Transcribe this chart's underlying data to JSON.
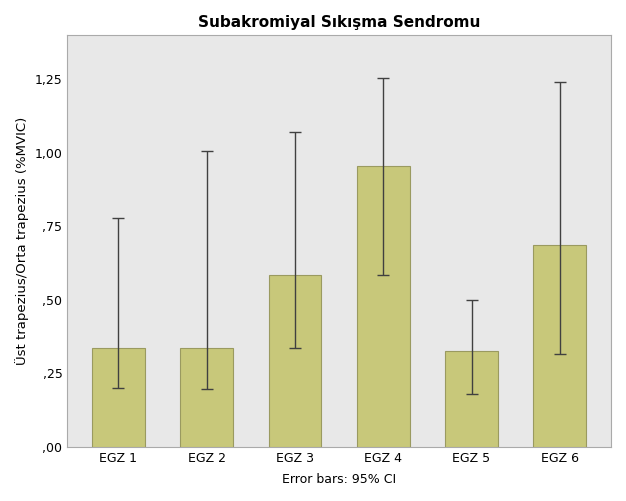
{
  "title": "Subakromiyal Sıkışma Sendromu",
  "ylabel": "Üst trapezius/Orta trapezius (%MVIC)",
  "xlabel": "Error bars: 95% CI",
  "categories": [
    "EGZ 1",
    "EGZ 2",
    "EGZ 3",
    "EGZ 4",
    "EGZ 5",
    "EGZ 6"
  ],
  "values": [
    0.335,
    0.335,
    0.585,
    0.955,
    0.325,
    0.685
  ],
  "errors_lower": [
    0.135,
    0.14,
    0.25,
    0.37,
    0.145,
    0.37
  ],
  "errors_upper": [
    0.445,
    0.67,
    0.485,
    0.3,
    0.175,
    0.555
  ],
  "bar_color": "#c8c87a",
  "bar_edgecolor": "#9a9a60",
  "figure_facecolor": "#ffffff",
  "axes_facecolor": "#e8e8e8",
  "ylim": [
    0,
    1.4
  ],
  "yticks": [
    0.0,
    0.25,
    0.5,
    0.75,
    1.0,
    1.25
  ],
  "ytick_labels": [
    ",00",
    ",25",
    ",50",
    ",75",
    "1,00",
    "1,25"
  ],
  "title_fontsize": 11,
  "label_fontsize": 9.5,
  "tick_fontsize": 9
}
